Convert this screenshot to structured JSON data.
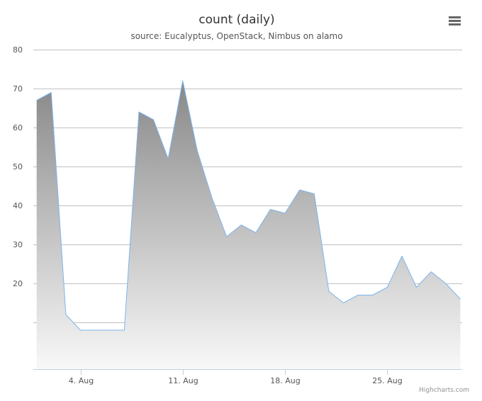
{
  "chart_data": {
    "type": "area",
    "title": "count (daily)",
    "subtitle": "source: Eucalyptus, OpenStack, Nimbus on alamo",
    "x_start": "2014-08-01",
    "x_end": "2014-08-30",
    "x": [
      "2014-08-01",
      "2014-08-02",
      "2014-08-03",
      "2014-08-04",
      "2014-08-05",
      "2014-08-06",
      "2014-08-07",
      "2014-08-08",
      "2014-08-09",
      "2014-08-10",
      "2014-08-11",
      "2014-08-12",
      "2014-08-13",
      "2014-08-14",
      "2014-08-15",
      "2014-08-16",
      "2014-08-17",
      "2014-08-18",
      "2014-08-19",
      "2014-08-20",
      "2014-08-21",
      "2014-08-22",
      "2014-08-23",
      "2014-08-24",
      "2014-08-25",
      "2014-08-26",
      "2014-08-27",
      "2014-08-28",
      "2014-08-29",
      "2014-08-30"
    ],
    "values": [
      67,
      69,
      12,
      8,
      8,
      8,
      8,
      64,
      62,
      52,
      72,
      54,
      42,
      32,
      35,
      33,
      39,
      38,
      44,
      43,
      18,
      15,
      17,
      17,
      19,
      27,
      19,
      23,
      20,
      16
    ],
    "x_ticks": [
      {
        "date": "2014-08-04",
        "label": "4. Aug"
      },
      {
        "date": "2014-08-11",
        "label": "11. Aug"
      },
      {
        "date": "2014-08-18",
        "label": "18. Aug"
      },
      {
        "date": "2014-08-25",
        "label": "25. Aug"
      }
    ],
    "y_ticks": [
      {
        "value": 20,
        "label": "20"
      },
      {
        "value": 30,
        "label": "30"
      },
      {
        "value": 40,
        "label": "40"
      },
      {
        "value": 50,
        "label": "50"
      },
      {
        "value": 60,
        "label": "60"
      },
      {
        "value": 70,
        "label": "70"
      },
      {
        "value": 80,
        "label": "80"
      }
    ],
    "ylim": [
      -2,
      80
    ],
    "gridlines": [
      10,
      20,
      30,
      40,
      50,
      60,
      70,
      80
    ],
    "grid": true,
    "legend": false
  },
  "colors": {
    "line": "#7cb5ec",
    "fill_top": "#888888",
    "fill_bottom": "#f8f8f8",
    "grid": "#c0c0c0",
    "axis": "#c0d0e0"
  },
  "menu": {
    "icon": "hamburger-menu-icon"
  },
  "credits": {
    "label": "Highcharts.com"
  }
}
